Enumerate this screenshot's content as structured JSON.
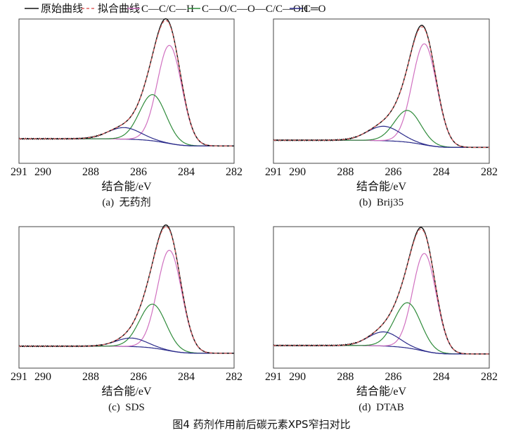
{
  "figure_caption": "图4 药剂作用前后碳元素XPS窄扫对比",
  "colors": {
    "raw": "#111111",
    "fit": "#e06060",
    "cc": "#d070c0",
    "co": "#2e8b3a",
    "c_eq_o": "#2a2a8a",
    "background": "#2a2a8a"
  },
  "legend": [
    {
      "label": "原始曲线",
      "style": "solid",
      "color": "#111111"
    },
    {
      "label": "拟合曲线",
      "style": "dashed",
      "color": "#e06060"
    },
    {
      "label": "C—C/C—H",
      "style": "solid",
      "color": "#d070c0"
    },
    {
      "label": "C—O/C—O—C/C—OH",
      "style": "solid",
      "color": "#2e8b3a"
    },
    {
      "label": "C═O",
      "style": "solid",
      "color": "#2a2a8a"
    }
  ],
  "chart_data": [
    {
      "type": "line",
      "caption": "(a)  无药剂",
      "xlabel": "结合能/eV",
      "xlim": [
        291,
        282
      ],
      "ylim": [
        0,
        1
      ],
      "xticks": [
        "291",
        "290",
        "288",
        "286",
        "284",
        "282"
      ],
      "xtick_values": [
        291,
        290,
        288,
        286,
        284,
        282
      ],
      "background": {
        "high_be": 0.17,
        "low_be": 0.12
      },
      "peaks": [
        {
          "name": "C—C/C—H",
          "center": 284.7,
          "height": 0.68,
          "fwhm": 1.2
        },
        {
          "name": "C—O/C—O—C/C—OH",
          "center": 285.4,
          "height": 0.32,
          "fwhm": 1.3
        },
        {
          "name": "C═O",
          "center": 286.6,
          "height": 0.08,
          "fwhm": 1.6
        }
      ]
    },
    {
      "type": "line",
      "caption": "(b)  Brij35",
      "xlabel": "结合能/eV",
      "xlim": [
        291,
        282
      ],
      "ylim": [
        0,
        1
      ],
      "xticks": [
        "291",
        "290",
        "288",
        "286",
        "284",
        "282"
      ],
      "xtick_values": [
        291,
        290,
        288,
        286,
        284,
        282
      ],
      "background": {
        "high_be": 0.16,
        "low_be": 0.11
      },
      "peaks": [
        {
          "name": "C—C/C—H",
          "center": 284.7,
          "height": 0.7,
          "fwhm": 1.2
        },
        {
          "name": "C—O/C—O—C/C—OH",
          "center": 285.4,
          "height": 0.22,
          "fwhm": 1.3
        },
        {
          "name": "C═O",
          "center": 286.4,
          "height": 0.1,
          "fwhm": 1.6
        }
      ]
    },
    {
      "type": "line",
      "caption": "(c)  SDS",
      "xlabel": "结合能/eV",
      "xlim": [
        291,
        282
      ],
      "ylim": [
        0,
        1
      ],
      "xticks": [
        "291",
        "290",
        "288",
        "286",
        "284",
        "282"
      ],
      "xtick_values": [
        291,
        290,
        288,
        286,
        284,
        282
      ],
      "background": {
        "high_be": 0.155,
        "low_be": 0.105
      },
      "peaks": [
        {
          "name": "C—C/C—H",
          "center": 284.7,
          "height": 0.71,
          "fwhm": 1.2
        },
        {
          "name": "C—O/C—O—C/C—OH",
          "center": 285.4,
          "height": 0.31,
          "fwhm": 1.3
        },
        {
          "name": "C═O",
          "center": 286.3,
          "height": 0.06,
          "fwhm": 1.5
        }
      ]
    },
    {
      "type": "line",
      "caption": "(d)  DTAB",
      "xlabel": "结合能/eV",
      "xlim": [
        291,
        282
      ],
      "ylim": [
        0,
        1
      ],
      "xticks": [
        "291",
        "290",
        "288",
        "286",
        "284",
        "282"
      ],
      "xtick_values": [
        291,
        290,
        288,
        286,
        284,
        282
      ],
      "background": {
        "high_be": 0.16,
        "low_be": 0.1
      },
      "peaks": [
        {
          "name": "C—C/C—H",
          "center": 284.7,
          "height": 0.69,
          "fwhm": 1.15
        },
        {
          "name": "C—O/C—O—C/C—OH",
          "center": 285.4,
          "height": 0.32,
          "fwhm": 1.3
        },
        {
          "name": "C═O",
          "center": 286.4,
          "height": 0.1,
          "fwhm": 1.5
        }
      ]
    }
  ]
}
